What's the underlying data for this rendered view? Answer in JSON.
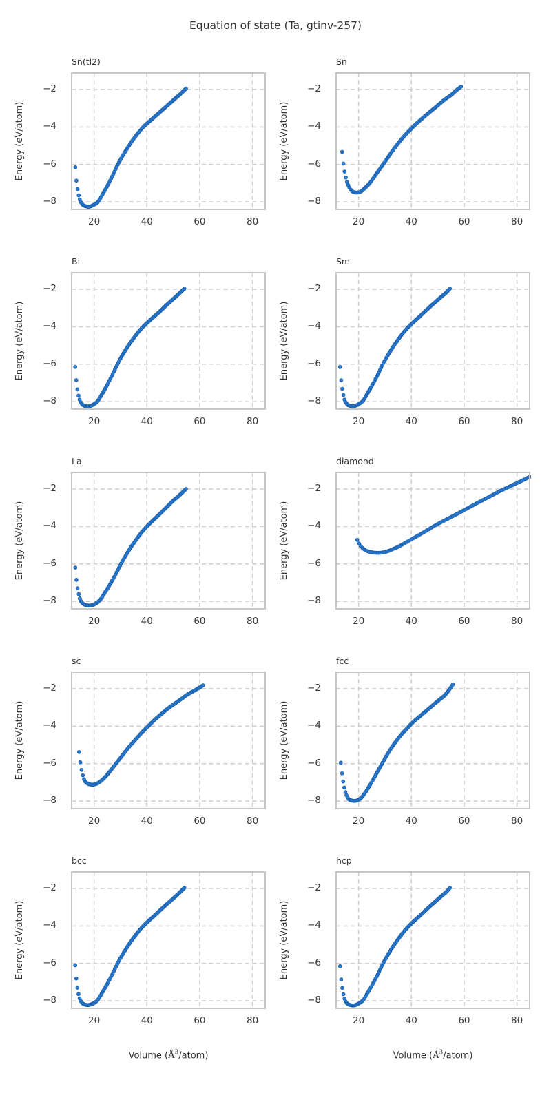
{
  "figure": {
    "title": "Equation of state (Ta, gtinv-257)"
  },
  "style": {
    "dot_fill": "#2b7ad2",
    "dot_edge": "#1a5fa8",
    "grid_color": "#cccccc",
    "spine_color": "#c6c6c6",
    "text_color": "#333333",
    "tick_color": "#3a3a3a"
  },
  "chart_data": {
    "type": "scatter",
    "title": "Equation of state (Ta, gtinv-257)",
    "ylabel": "Energy (eV/atom)",
    "xlabel_parts": {
      "prefix": "Volume (",
      "symbol": "Å",
      "sup": "3",
      "suffix": "/atom)"
    },
    "xlim": [
      11.5,
      84.8
    ],
    "ylim": [
      -8.4,
      -1.12
    ],
    "xticks": [
      20,
      40,
      60,
      80
    ],
    "yticks": [
      -2,
      -4,
      -6,
      -8
    ],
    "grid": "dashed",
    "legend": "none",
    "n_points_per_series": 100,
    "subplots": [
      {
        "label": "Sn(tl2)",
        "anchors": [
          [
            12.9,
            -6.15
          ],
          [
            13.35,
            -6.9
          ],
          [
            13.9,
            -7.45
          ],
          [
            14.6,
            -7.88
          ],
          [
            15.5,
            -8.12
          ],
          [
            16.6,
            -8.22
          ],
          [
            18.3,
            -8.25
          ],
          [
            20.2,
            -8.13
          ],
          [
            21.6,
            -7.98
          ],
          [
            23.2,
            -7.6
          ],
          [
            25,
            -7.15
          ],
          [
            27,
            -6.6
          ],
          [
            29,
            -6.0
          ],
          [
            31,
            -5.5
          ],
          [
            33,
            -5.05
          ],
          [
            35,
            -4.63
          ],
          [
            37,
            -4.27
          ],
          [
            39,
            -3.95
          ],
          [
            41,
            -3.7
          ],
          [
            43,
            -3.45
          ],
          [
            45,
            -3.2
          ],
          [
            47,
            -2.95
          ],
          [
            49,
            -2.7
          ],
          [
            51,
            -2.45
          ],
          [
            53,
            -2.2
          ],
          [
            54.8,
            -1.95
          ]
        ]
      },
      {
        "label": "Sn",
        "anchors": [
          [
            13.8,
            -5.33
          ],
          [
            14.25,
            -5.95
          ],
          [
            14.8,
            -6.45
          ],
          [
            15.5,
            -6.88
          ],
          [
            16.4,
            -7.2
          ],
          [
            17.5,
            -7.42
          ],
          [
            19.0,
            -7.5
          ],
          [
            20.8,
            -7.45
          ],
          [
            22.5,
            -7.25
          ],
          [
            24.5,
            -6.95
          ],
          [
            26.5,
            -6.55
          ],
          [
            28.8,
            -6.1
          ],
          [
            31,
            -5.65
          ],
          [
            33.5,
            -5.15
          ],
          [
            36,
            -4.7
          ],
          [
            38.5,
            -4.3
          ],
          [
            41.7,
            -3.85
          ],
          [
            44.5,
            -3.5
          ],
          [
            47,
            -3.2
          ],
          [
            50,
            -2.85
          ],
          [
            52.5,
            -2.55
          ],
          [
            55,
            -2.3
          ],
          [
            57,
            -2.05
          ],
          [
            58.8,
            -1.85
          ]
        ]
      },
      {
        "label": "Bi",
        "anchors": [
          [
            12.85,
            -6.15
          ],
          [
            13.3,
            -6.9
          ],
          [
            13.85,
            -7.5
          ],
          [
            14.55,
            -7.9
          ],
          [
            15.4,
            -8.13
          ],
          [
            16.5,
            -8.23
          ],
          [
            18.0,
            -8.25
          ],
          [
            19.8,
            -8.15
          ],
          [
            21.3,
            -7.98
          ],
          [
            23,
            -7.6
          ],
          [
            24.8,
            -7.15
          ],
          [
            26.8,
            -6.6
          ],
          [
            28.8,
            -6.02
          ],
          [
            30.8,
            -5.5
          ],
          [
            32.8,
            -5.05
          ],
          [
            34.8,
            -4.65
          ],
          [
            36.8,
            -4.28
          ],
          [
            38.8,
            -3.97
          ],
          [
            40.8,
            -3.7
          ],
          [
            42.8,
            -3.45
          ],
          [
            44.8,
            -3.2
          ],
          [
            46.8,
            -2.93
          ],
          [
            48.8,
            -2.67
          ],
          [
            50.8,
            -2.42
          ],
          [
            52.6,
            -2.18
          ],
          [
            54.2,
            -1.97
          ]
        ]
      },
      {
        "label": "Sm",
        "anchors": [
          [
            13.0,
            -6.15
          ],
          [
            13.45,
            -6.9
          ],
          [
            14.0,
            -7.45
          ],
          [
            14.7,
            -7.9
          ],
          [
            15.6,
            -8.13
          ],
          [
            16.7,
            -8.22
          ],
          [
            18.3,
            -8.24
          ],
          [
            20.2,
            -8.12
          ],
          [
            21.7,
            -7.95
          ],
          [
            23.3,
            -7.58
          ],
          [
            25.2,
            -7.12
          ],
          [
            27.2,
            -6.58
          ],
          [
            29.2,
            -6.0
          ],
          [
            31.2,
            -5.5
          ],
          [
            33.2,
            -5.05
          ],
          [
            35.2,
            -4.65
          ],
          [
            37.2,
            -4.28
          ],
          [
            39.2,
            -3.97
          ],
          [
            41.2,
            -3.7
          ],
          [
            43.2,
            -3.45
          ],
          [
            45.2,
            -3.18
          ],
          [
            47.2,
            -2.92
          ],
          [
            49.2,
            -2.67
          ],
          [
            51.2,
            -2.42
          ],
          [
            53.2,
            -2.18
          ],
          [
            54.6,
            -1.97
          ]
        ]
      },
      {
        "label": "La",
        "anchors": [
          [
            12.9,
            -6.2
          ],
          [
            13.4,
            -6.95
          ],
          [
            14.0,
            -7.5
          ],
          [
            14.8,
            -7.92
          ],
          [
            15.8,
            -8.12
          ],
          [
            17.0,
            -8.2
          ],
          [
            18.8,
            -8.22
          ],
          [
            20.8,
            -8.1
          ],
          [
            22.4,
            -7.9
          ],
          [
            24,
            -7.55
          ],
          [
            26,
            -7.1
          ],
          [
            28,
            -6.6
          ],
          [
            30,
            -6.05
          ],
          [
            32,
            -5.55
          ],
          [
            34,
            -5.1
          ],
          [
            36,
            -4.7
          ],
          [
            38,
            -4.32
          ],
          [
            40,
            -4.0
          ],
          [
            42,
            -3.72
          ],
          [
            44,
            -3.45
          ],
          [
            46,
            -3.18
          ],
          [
            48,
            -2.9
          ],
          [
            50,
            -2.62
          ],
          [
            52,
            -2.38
          ],
          [
            54.8,
            -2.0
          ]
        ]
      },
      {
        "label": "diamond",
        "anchors": [
          [
            19.5,
            -4.72
          ],
          [
            20.3,
            -4.95
          ],
          [
            21.5,
            -5.15
          ],
          [
            23,
            -5.3
          ],
          [
            25,
            -5.38
          ],
          [
            27.5,
            -5.41
          ],
          [
            29.5,
            -5.38
          ],
          [
            31.5,
            -5.3
          ],
          [
            33.5,
            -5.18
          ],
          [
            35.5,
            -5.05
          ],
          [
            38,
            -4.85
          ],
          [
            40.5,
            -4.65
          ],
          [
            43,
            -4.45
          ],
          [
            46,
            -4.2
          ],
          [
            49,
            -3.95
          ],
          [
            52,
            -3.72
          ],
          [
            55,
            -3.5
          ],
          [
            58,
            -3.28
          ],
          [
            61,
            -3.05
          ],
          [
            64,
            -2.82
          ],
          [
            67,
            -2.6
          ],
          [
            70,
            -2.38
          ],
          [
            73,
            -2.15
          ],
          [
            76,
            -1.95
          ],
          [
            79,
            -1.75
          ],
          [
            82,
            -1.55
          ],
          [
            84.8,
            -1.35
          ]
        ]
      },
      {
        "label": "sc",
        "anchors": [
          [
            14.3,
            -5.38
          ],
          [
            14.8,
            -5.95
          ],
          [
            15.5,
            -6.5
          ],
          [
            16.5,
            -6.92
          ],
          [
            17.8,
            -7.08
          ],
          [
            19.5,
            -7.12
          ],
          [
            21.3,
            -7.05
          ],
          [
            23.2,
            -6.85
          ],
          [
            25.5,
            -6.5
          ],
          [
            28,
            -6.05
          ],
          [
            30.5,
            -5.6
          ],
          [
            33,
            -5.15
          ],
          [
            35.5,
            -4.75
          ],
          [
            38,
            -4.35
          ],
          [
            40.5,
            -4.0
          ],
          [
            43,
            -3.65
          ],
          [
            45.5,
            -3.35
          ],
          [
            48,
            -3.05
          ],
          [
            50.5,
            -2.8
          ],
          [
            53,
            -2.55
          ],
          [
            55.5,
            -2.3
          ],
          [
            58,
            -2.1
          ],
          [
            61.3,
            -1.82
          ]
        ]
      },
      {
        "label": "fcc",
        "anchors": [
          [
            13.3,
            -5.95
          ],
          [
            13.8,
            -6.6
          ],
          [
            14.4,
            -7.15
          ],
          [
            15.2,
            -7.6
          ],
          [
            16.2,
            -7.88
          ],
          [
            17.5,
            -7.97
          ],
          [
            19.0,
            -7.98
          ],
          [
            20.8,
            -7.85
          ],
          [
            22.5,
            -7.55
          ],
          [
            24.5,
            -7.1
          ],
          [
            26.5,
            -6.6
          ],
          [
            28.5,
            -6.1
          ],
          [
            30.5,
            -5.6
          ],
          [
            32.5,
            -5.15
          ],
          [
            34.5,
            -4.75
          ],
          [
            36.5,
            -4.4
          ],
          [
            38.5,
            -4.1
          ],
          [
            40.5,
            -3.8
          ],
          [
            43,
            -3.5
          ],
          [
            45.5,
            -3.2
          ],
          [
            48,
            -2.9
          ],
          [
            50.5,
            -2.6
          ],
          [
            53,
            -2.3
          ],
          [
            55.7,
            -1.78
          ]
        ]
      },
      {
        "label": "bcc",
        "anchors": [
          [
            12.85,
            -6.1
          ],
          [
            13.3,
            -6.85
          ],
          [
            13.85,
            -7.45
          ],
          [
            14.55,
            -7.88
          ],
          [
            15.4,
            -8.1
          ],
          [
            16.5,
            -8.2
          ],
          [
            18.0,
            -8.22
          ],
          [
            19.9,
            -8.12
          ],
          [
            21.4,
            -7.95
          ],
          [
            23,
            -7.58
          ],
          [
            24.9,
            -7.12
          ],
          [
            26.9,
            -6.58
          ],
          [
            28.9,
            -6.0
          ],
          [
            30.9,
            -5.5
          ],
          [
            32.9,
            -5.05
          ],
          [
            34.9,
            -4.65
          ],
          [
            36.9,
            -4.28
          ],
          [
            38.9,
            -3.97
          ],
          [
            40.9,
            -3.7
          ],
          [
            42.9,
            -3.45
          ],
          [
            44.9,
            -3.18
          ],
          [
            46.9,
            -2.92
          ],
          [
            48.9,
            -2.67
          ],
          [
            50.9,
            -2.42
          ],
          [
            52.7,
            -2.18
          ],
          [
            54.2,
            -1.97
          ]
        ]
      },
      {
        "label": "hcp",
        "anchors": [
          [
            13.0,
            -6.15
          ],
          [
            13.45,
            -6.9
          ],
          [
            14.0,
            -7.45
          ],
          [
            14.7,
            -7.9
          ],
          [
            15.6,
            -8.13
          ],
          [
            16.8,
            -8.22
          ],
          [
            18.4,
            -8.24
          ],
          [
            20.3,
            -8.12
          ],
          [
            21.8,
            -7.95
          ],
          [
            23.4,
            -7.58
          ],
          [
            25.3,
            -7.12
          ],
          [
            27.3,
            -6.58
          ],
          [
            29.3,
            -6.0
          ],
          [
            31.3,
            -5.5
          ],
          [
            33.3,
            -5.05
          ],
          [
            35.3,
            -4.65
          ],
          [
            37.3,
            -4.28
          ],
          [
            39.3,
            -3.97
          ],
          [
            41.3,
            -3.7
          ],
          [
            43.3,
            -3.45
          ],
          [
            45.3,
            -3.18
          ],
          [
            47.3,
            -2.92
          ],
          [
            49.3,
            -2.67
          ],
          [
            51.3,
            -2.42
          ],
          [
            53.3,
            -2.18
          ],
          [
            54.6,
            -1.97
          ]
        ]
      }
    ]
  }
}
